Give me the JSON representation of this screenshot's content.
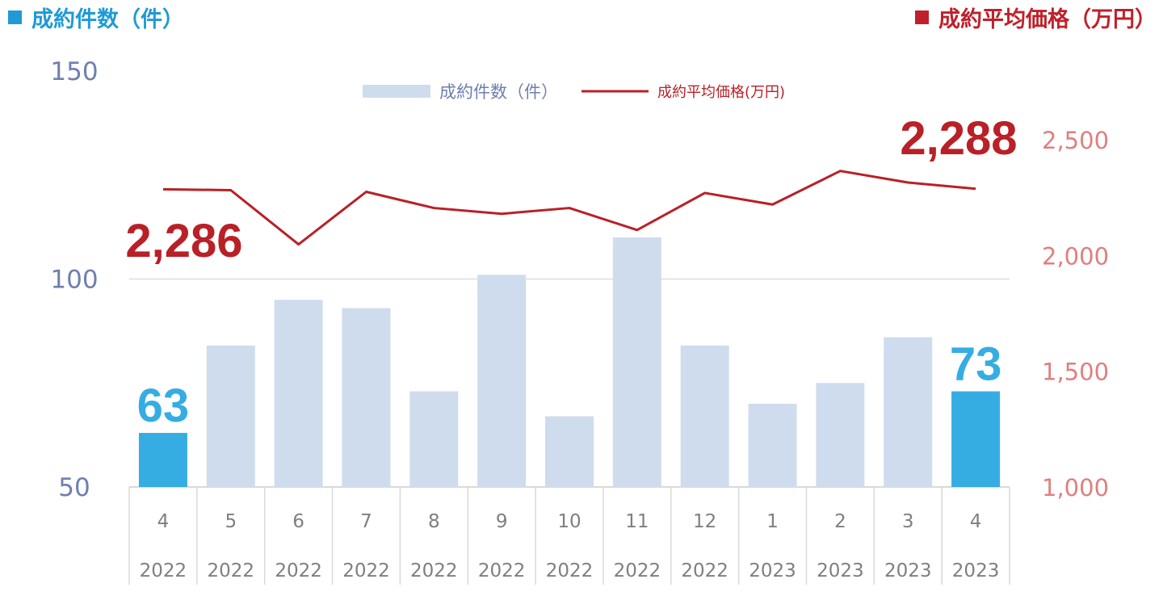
{
  "header": {
    "left_title": "成約件数（件）",
    "right_title": "成約平均価格（万円）"
  },
  "colors": {
    "bar": "#cfdcee",
    "bar_highlight": "#35ade2",
    "line": "#b92027",
    "left_axis_text": "#6f7fae",
    "right_axis_text": "#e07f7f",
    "grid": "#d9d9d9",
    "category_text": "#7f7f7f"
  },
  "chart_data": {
    "type": "bar",
    "categories": [
      {
        "month": "4",
        "year": "2022"
      },
      {
        "month": "5",
        "year": "2022"
      },
      {
        "month": "6",
        "year": "2022"
      },
      {
        "month": "7",
        "year": "2022"
      },
      {
        "month": "8",
        "year": "2022"
      },
      {
        "month": "9",
        "year": "2022"
      },
      {
        "month": "10",
        "year": "2022"
      },
      {
        "month": "11",
        "year": "2022"
      },
      {
        "month": "12",
        "year": "2022"
      },
      {
        "month": "1",
        "year": "2023"
      },
      {
        "month": "2",
        "year": "2023"
      },
      {
        "month": "3",
        "year": "2023"
      },
      {
        "month": "4",
        "year": "2023"
      }
    ],
    "series": [
      {
        "name": "成約件数（件）",
        "type": "bar",
        "axis": "left",
        "values": [
          63,
          84,
          95,
          93,
          73,
          101,
          67,
          110,
          84,
          70,
          75,
          86,
          73
        ],
        "highlight": [
          0,
          12
        ]
      },
      {
        "name": "成約平均価格(万円)",
        "type": "line",
        "axis": "right",
        "values": [
          2286,
          2282,
          2048,
          2275,
          2205,
          2180,
          2205,
          2110,
          2270,
          2220,
          2365,
          2315,
          2288
        ]
      }
    ],
    "left_axis": {
      "min": 50,
      "max": 150,
      "ticks": [
        "50",
        "100",
        "150"
      ]
    },
    "right_axis": {
      "min": 1000,
      "max": 2500,
      "ticks": [
        "1,000",
        "1,500",
        "2,000",
        "2,500"
      ]
    },
    "legend": {
      "position": "top-center",
      "bar_label": "成約件数（件）",
      "line_label": "成約平均価格(万円)"
    },
    "annotations": {
      "first_bar_label": "63",
      "last_bar_label": "73",
      "first_line_label": "2,286",
      "last_line_label": "2,288"
    },
    "grid": "horizontal"
  }
}
